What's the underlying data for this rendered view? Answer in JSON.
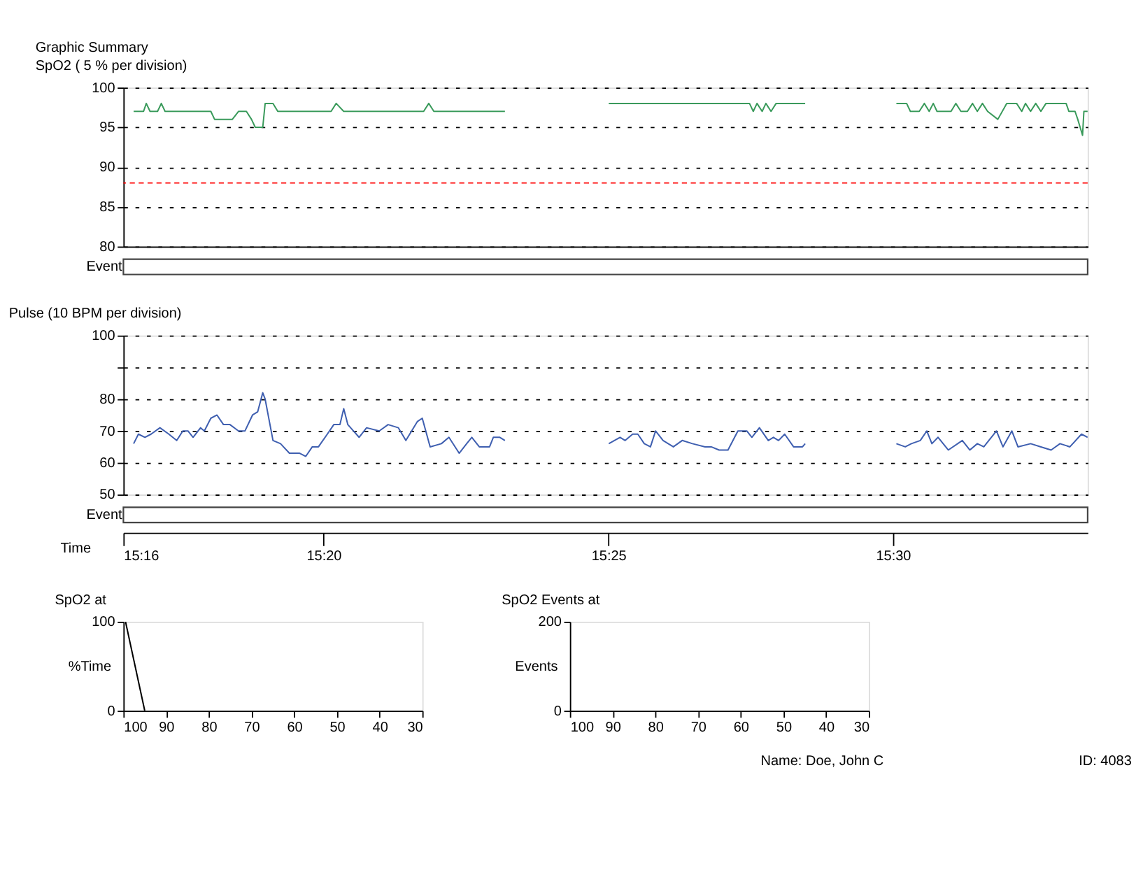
{
  "chart_data": [
    {
      "type": "line",
      "title": "Graphic Summary",
      "subtitle": "SpO2 ( 5 % per division)",
      "tick_labels": "y",
      "grid": "y",
      "line_style": "solid",
      "xlim": [
        15.2747,
        15.557
      ],
      "ylim": [
        80,
        100
      ],
      "yticks": [
        80,
        85,
        90,
        95,
        100
      ],
      "ref_lines": [
        {
          "axis": "y",
          "value": 88,
          "color": "#ff0000",
          "line_style": "dashed"
        }
      ],
      "annotations": [
        "Event"
      ],
      "series": [
        {
          "color": "#3a9a5b",
          "x": [
            15.2777,
            15.2806,
            15.2814,
            15.2825,
            15.2847,
            15.2858,
            15.2869,
            15.3003,
            15.3014,
            15.3066,
            15.3084,
            15.3107,
            15.3122,
            15.3133,
            15.3155,
            15.3162,
            15.3185,
            15.3199,
            15.3355,
            15.337,
            15.3392,
            15.3626,
            15.3641,
            15.3656,
            15.3864,
            15.4,
            15.4168,
            15.458,
            15.4591,
            15.4602,
            15.4617,
            15.4628,
            15.4643,
            15.4658,
            15.4743,
            15.49,
            15.501,
            15.504,
            15.5051,
            15.5077,
            15.5092,
            15.5106,
            15.5118,
            15.5129,
            15.517,
            15.5184,
            15.5199,
            15.5218,
            15.5233,
            15.5247,
            15.5262,
            15.5277,
            15.5307,
            15.5333,
            15.5362,
            15.5377,
            15.5388,
            15.5403,
            15.5418,
            15.5433,
            15.5448,
            15.5507,
            15.5515,
            15.5533,
            15.5541,
            15.5548,
            15.5555,
            15.5559,
            15.557
          ],
          "values": [
            97,
            97,
            98,
            97,
            97,
            98,
            97,
            97,
            96,
            96,
            97,
            97,
            96,
            95,
            95,
            98,
            98,
            97,
            97,
            98,
            97,
            97,
            98,
            97,
            97,
            null,
            98,
            98,
            97,
            98,
            97,
            98,
            97,
            98,
            98,
            null,
            98,
            98,
            97,
            97,
            98,
            97,
            98,
            97,
            97,
            98,
            97,
            97,
            98,
            97,
            98,
            97,
            96,
            98,
            98,
            97,
            98,
            97,
            98,
            97,
            98,
            98,
            97,
            97,
            96,
            95,
            94,
            97,
            97
          ]
        }
      ]
    },
    {
      "type": "line",
      "title": "Pulse (10 BPM per division)",
      "xlabel": "Time",
      "grid": "y",
      "line_style": "solid",
      "xlim": [
        15.2747,
        15.557
      ],
      "xticks": [
        {
          "value": 15.2747,
          "label": "15:16"
        },
        {
          "value": 15.3333,
          "label": "15:20"
        },
        {
          "value": 15.4167,
          "label": "15:25"
        },
        {
          "value": 15.5,
          "label": "15:30"
        }
      ],
      "ylim": [
        50,
        100
      ],
      "yticks": [
        50,
        60,
        70,
        80,
        {
          "value": 90,
          "label": null
        },
        100
      ],
      "annotations": [
        "Event"
      ],
      "series": [
        {
          "color": "#3f5fb0",
          "x": [
            15.2777,
            15.2791,
            15.281,
            15.2828,
            15.2854,
            15.288,
            15.2903,
            15.2921,
            15.2936,
            15.2951,
            15.2973,
            15.2984,
            15.3003,
            15.3021,
            15.304,
            15.3059,
            15.3084,
            15.3103,
            15.3125,
            15.314,
            15.3155,
            15.3162,
            15.3185,
            15.3207,
            15.3233,
            15.3263,
            15.3281,
            15.33,
            15.3318,
            15.3344,
            15.3363,
            15.3381,
            15.3392,
            15.3404,
            15.3437,
            15.3459,
            15.3496,
            15.3522,
            15.3552,
            15.3574,
            15.3608,
            15.3622,
            15.3645,
            15.3678,
            15.37,
            15.373,
            15.3752,
            15.3767,
            15.3789,
            15.3819,
            15.383,
            15.3849,
            15.3864,
            15.4,
            15.4168,
            15.4201,
            15.4216,
            15.4238,
            15.4253,
            15.4272,
            15.429,
            15.4305,
            15.4327,
            15.4357,
            15.4383,
            15.4413,
            15.445,
            15.4468,
            15.4491,
            15.4517,
            15.4546,
            15.4572,
            15.4587,
            15.4609,
            15.4635,
            15.465,
            15.4665,
            15.4683,
            15.4709,
            15.4735,
            15.4743,
            15.49,
            15.501,
            15.5036,
            15.5054,
            15.508,
            15.5099,
            15.5114,
            15.5132,
            15.5162,
            15.5203,
            15.5225,
            15.5247,
            15.5266,
            15.5303,
            15.5322,
            15.5348,
            15.5366,
            15.5403,
            15.5433,
            15.5463,
            15.5489,
            15.5518,
            15.5552,
            15.557
          ],
          "values": [
            66,
            69,
            68,
            69,
            71,
            69,
            67,
            70,
            70,
            68,
            71,
            70,
            74,
            75,
            72,
            72,
            70,
            70,
            75,
            76,
            82,
            80,
            67,
            66,
            63,
            63,
            62,
            65,
            65,
            69,
            72,
            72,
            77,
            72,
            68,
            71,
            70,
            72,
            71,
            67,
            73,
            74,
            65,
            66,
            68,
            63,
            66,
            68,
            65,
            65,
            68,
            68,
            67,
            null,
            66,
            68,
            67,
            69,
            69,
            66,
            65,
            70,
            67,
            65,
            67,
            66,
            65,
            65,
            64,
            64,
            70,
            70,
            68,
            71,
            67,
            68,
            67,
            69,
            65,
            65,
            66,
            null,
            66,
            65,
            66,
            67,
            70,
            66,
            68,
            64,
            67,
            64,
            66,
            65,
            70,
            65,
            70,
            65,
            66,
            65,
            64,
            66,
            65,
            69,
            68
          ]
        }
      ]
    },
    {
      "type": "line",
      "title": "SpO2 at",
      "ylabel": "%Time",
      "line_style": "solid",
      "xlim": [
        100,
        30
      ],
      "xticks": [
        100,
        90,
        80,
        70,
        60,
        50,
        40,
        30
      ],
      "ylim": [
        0,
        100
      ],
      "yticks": [
        0,
        100
      ],
      "series": [
        {
          "color": "#000000",
          "x": [
            99.5,
            95
          ],
          "values": [
            100,
            0
          ]
        }
      ]
    },
    {
      "type": "line",
      "title": "SpO2 Events at",
      "ylabel": "Events",
      "xlim": [
        100,
        30
      ],
      "xticks": [
        100,
        90,
        80,
        70,
        60,
        50,
        40,
        30
      ],
      "ylim": [
        0,
        200
      ],
      "yticks": [
        0,
        200
      ],
      "annotations": [
        "Name: Doe, John C",
        "ID: 4083"
      ]
    }
  ]
}
